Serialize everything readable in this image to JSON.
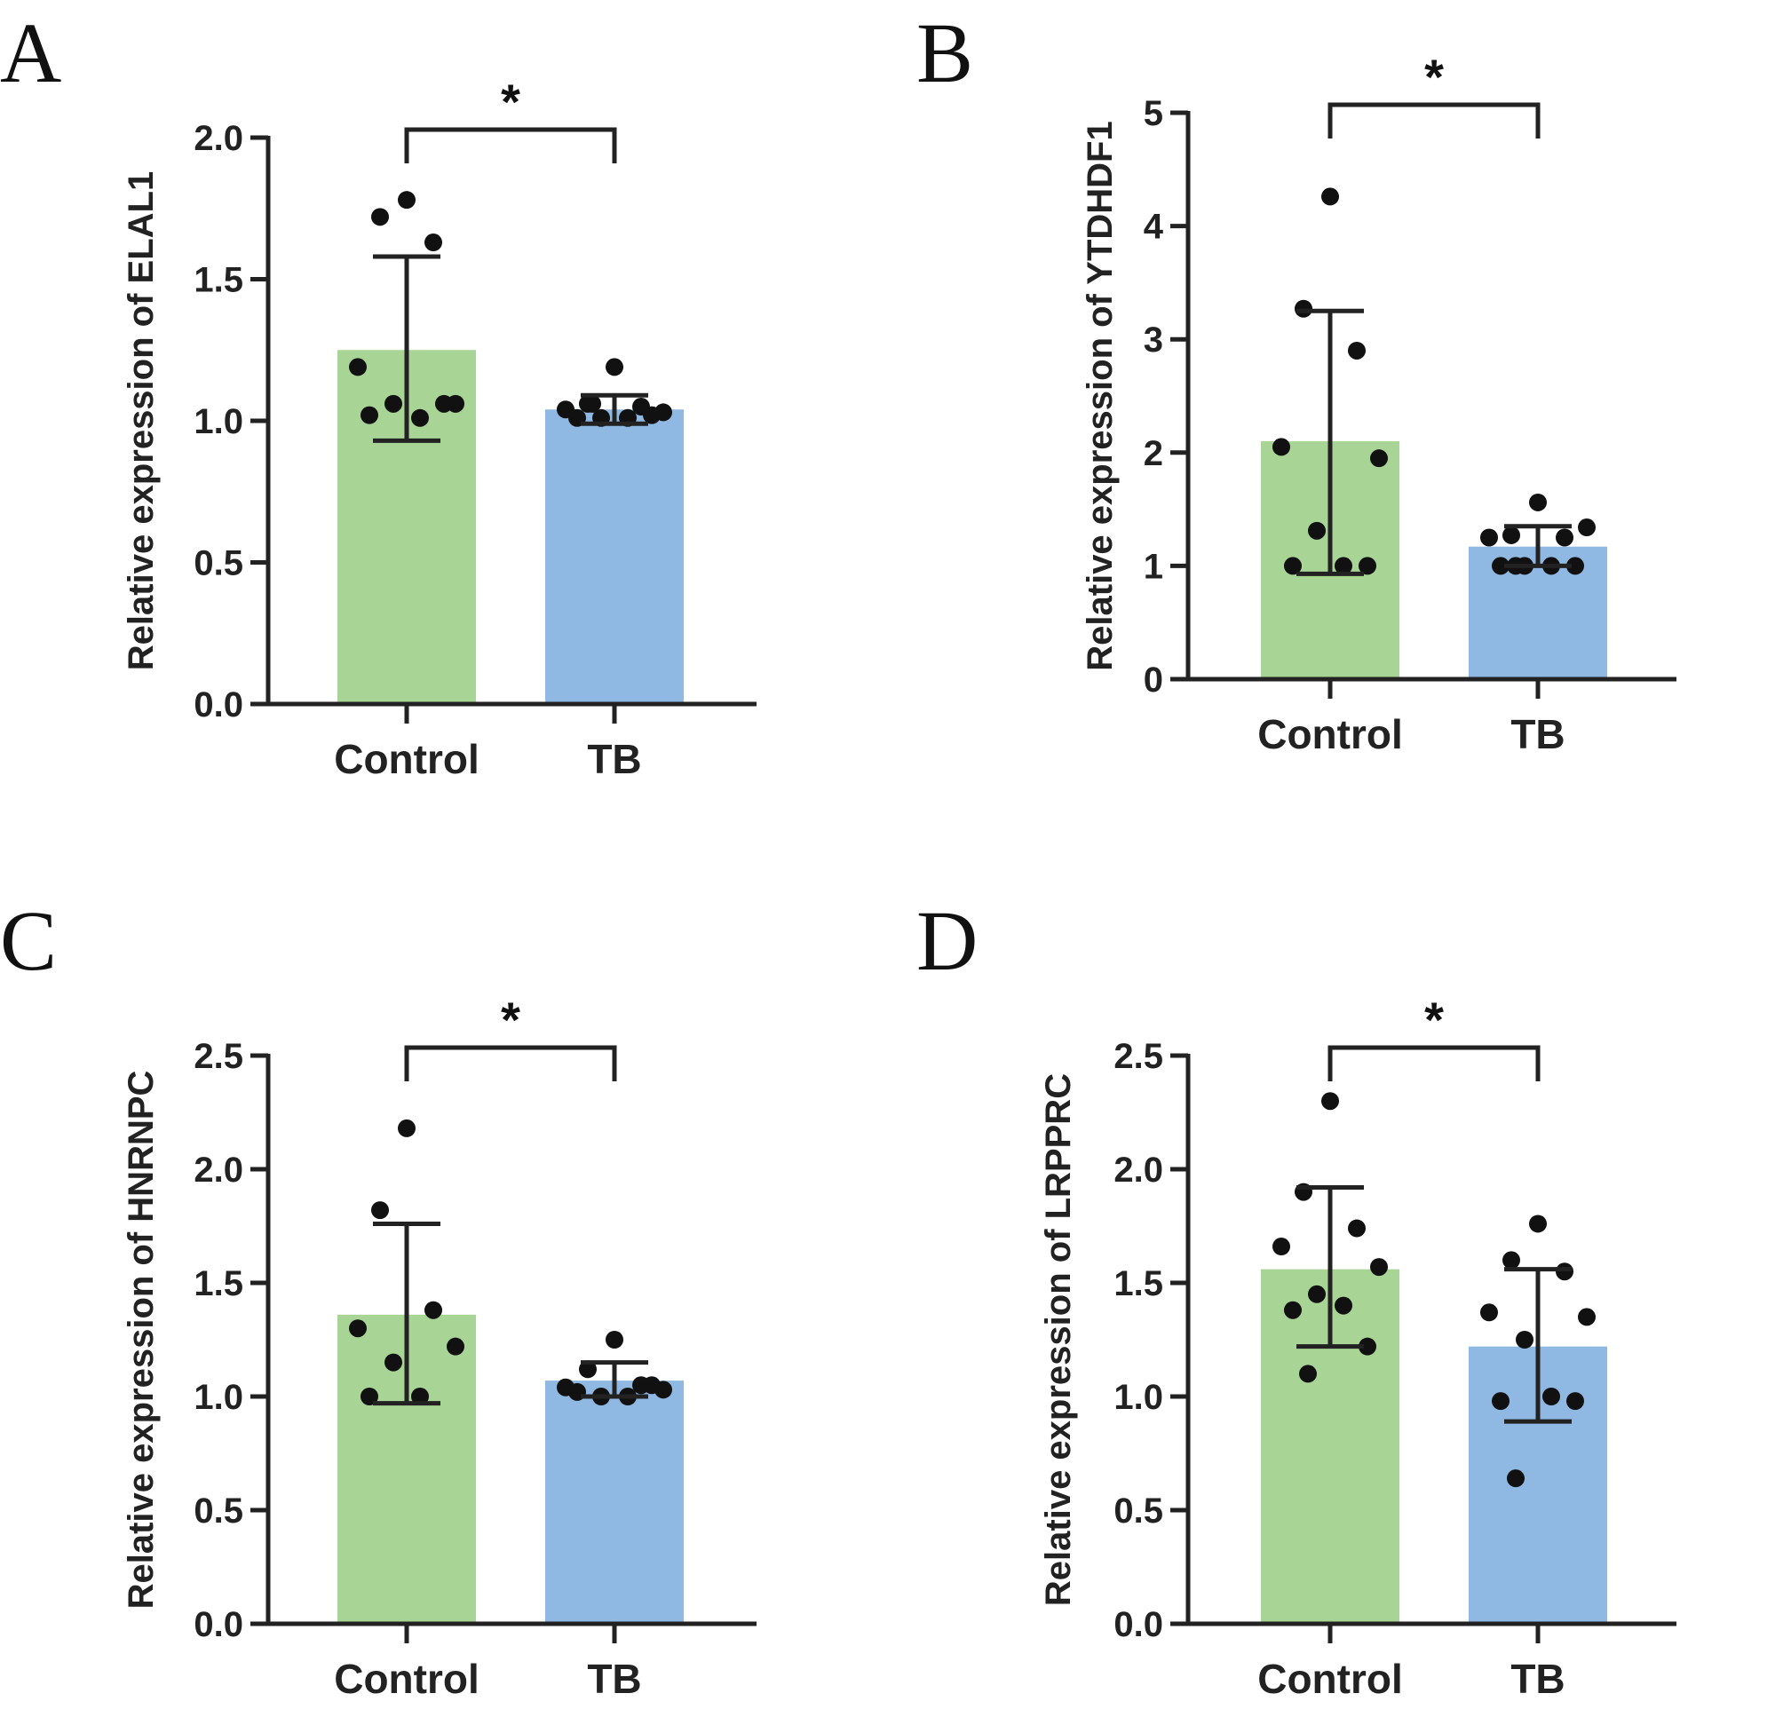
{
  "chart_data": [
    {
      "panel": "A",
      "type": "bar",
      "categories": [
        "Control",
        "TB"
      ],
      "ylabel": "Relative expression of ELAL1",
      "ylim": [
        0,
        2.0
      ],
      "yticks": [
        "0.0",
        "0.5",
        "1.0",
        "1.5",
        "2.0"
      ],
      "significance": "*",
      "colors": [
        "#a8d595",
        "#8fb8e2"
      ],
      "bars": [
        {
          "category": "Control",
          "mean": 1.25,
          "err_low": 0.93,
          "err_high": 1.58,
          "points": [
            1.78,
            1.72,
            1.63,
            1.19,
            1.06,
            1.06,
            1.01,
            1.02,
            1.06
          ]
        },
        {
          "category": "TB",
          "mean": 1.04,
          "err_low": 0.99,
          "err_high": 1.09,
          "points": [
            1.19,
            1.06,
            1.05,
            1.04,
            1.03,
            1.01,
            1.01,
            1.01,
            1.02,
            1.06
          ]
        }
      ]
    },
    {
      "panel": "B",
      "type": "bar",
      "categories": [
        "Control",
        "TB"
      ],
      "ylabel": "Relative expression of YTDHDF1",
      "ylim": [
        0,
        5
      ],
      "yticks": [
        "0",
        "1",
        "2",
        "3",
        "4",
        "5"
      ],
      "significance": "*",
      "colors": [
        "#a8d595",
        "#8fb8e2"
      ],
      "bars": [
        {
          "category": "Control",
          "mean": 2.1,
          "err_low": 0.93,
          "err_high": 3.25,
          "points": [
            4.26,
            3.27,
            2.9,
            2.05,
            1.95,
            1.31,
            1.0,
            1.0,
            1.0
          ]
        },
        {
          "category": "TB",
          "mean": 1.17,
          "err_low": 1.0,
          "err_high": 1.35,
          "points": [
            1.56,
            1.27,
            1.25,
            1.25,
            1.34,
            1.0,
            1.0,
            1.0,
            1.0,
            1.0
          ]
        }
      ]
    },
    {
      "panel": "C",
      "type": "bar",
      "categories": [
        "Control",
        "TB"
      ],
      "ylabel": "Relative expression of HNRNPC",
      "ylim": [
        0,
        2.5
      ],
      "yticks": [
        "0.0",
        "0.5",
        "1.0",
        "1.5",
        "2.0",
        "2.5"
      ],
      "significance": "*",
      "colors": [
        "#a8d595",
        "#8fb8e2"
      ],
      "bars": [
        {
          "category": "Control",
          "mean": 1.36,
          "err_low": 0.97,
          "err_high": 1.76,
          "points": [
            2.18,
            1.82,
            1.38,
            1.3,
            1.22,
            1.15,
            1.0,
            1.0
          ]
        },
        {
          "category": "TB",
          "mean": 1.07,
          "err_low": 1.0,
          "err_high": 1.15,
          "points": [
            1.25,
            1.12,
            1.05,
            1.04,
            1.03,
            1.0,
            1.0,
            1.02,
            1.05
          ]
        }
      ]
    },
    {
      "panel": "D",
      "type": "bar",
      "categories": [
        "Control",
        "TB"
      ],
      "ylabel": "Relative expression of LRPPRC",
      "ylim": [
        0,
        2.5
      ],
      "yticks": [
        "0.0",
        "0.5",
        "1.0",
        "1.5",
        "2.0",
        "2.5"
      ],
      "significance": "*",
      "colors": [
        "#a8d595",
        "#8fb8e2"
      ],
      "bars": [
        {
          "category": "Control",
          "mean": 1.56,
          "err_low": 1.22,
          "err_high": 1.92,
          "points": [
            2.3,
            1.9,
            1.74,
            1.66,
            1.57,
            1.45,
            1.4,
            1.38,
            1.22,
            1.1
          ]
        },
        {
          "category": "TB",
          "mean": 1.22,
          "err_low": 0.89,
          "err_high": 1.56,
          "points": [
            1.76,
            1.6,
            1.55,
            1.37,
            1.35,
            1.25,
            1.0,
            0.98,
            0.98,
            0.64
          ]
        }
      ]
    }
  ]
}
